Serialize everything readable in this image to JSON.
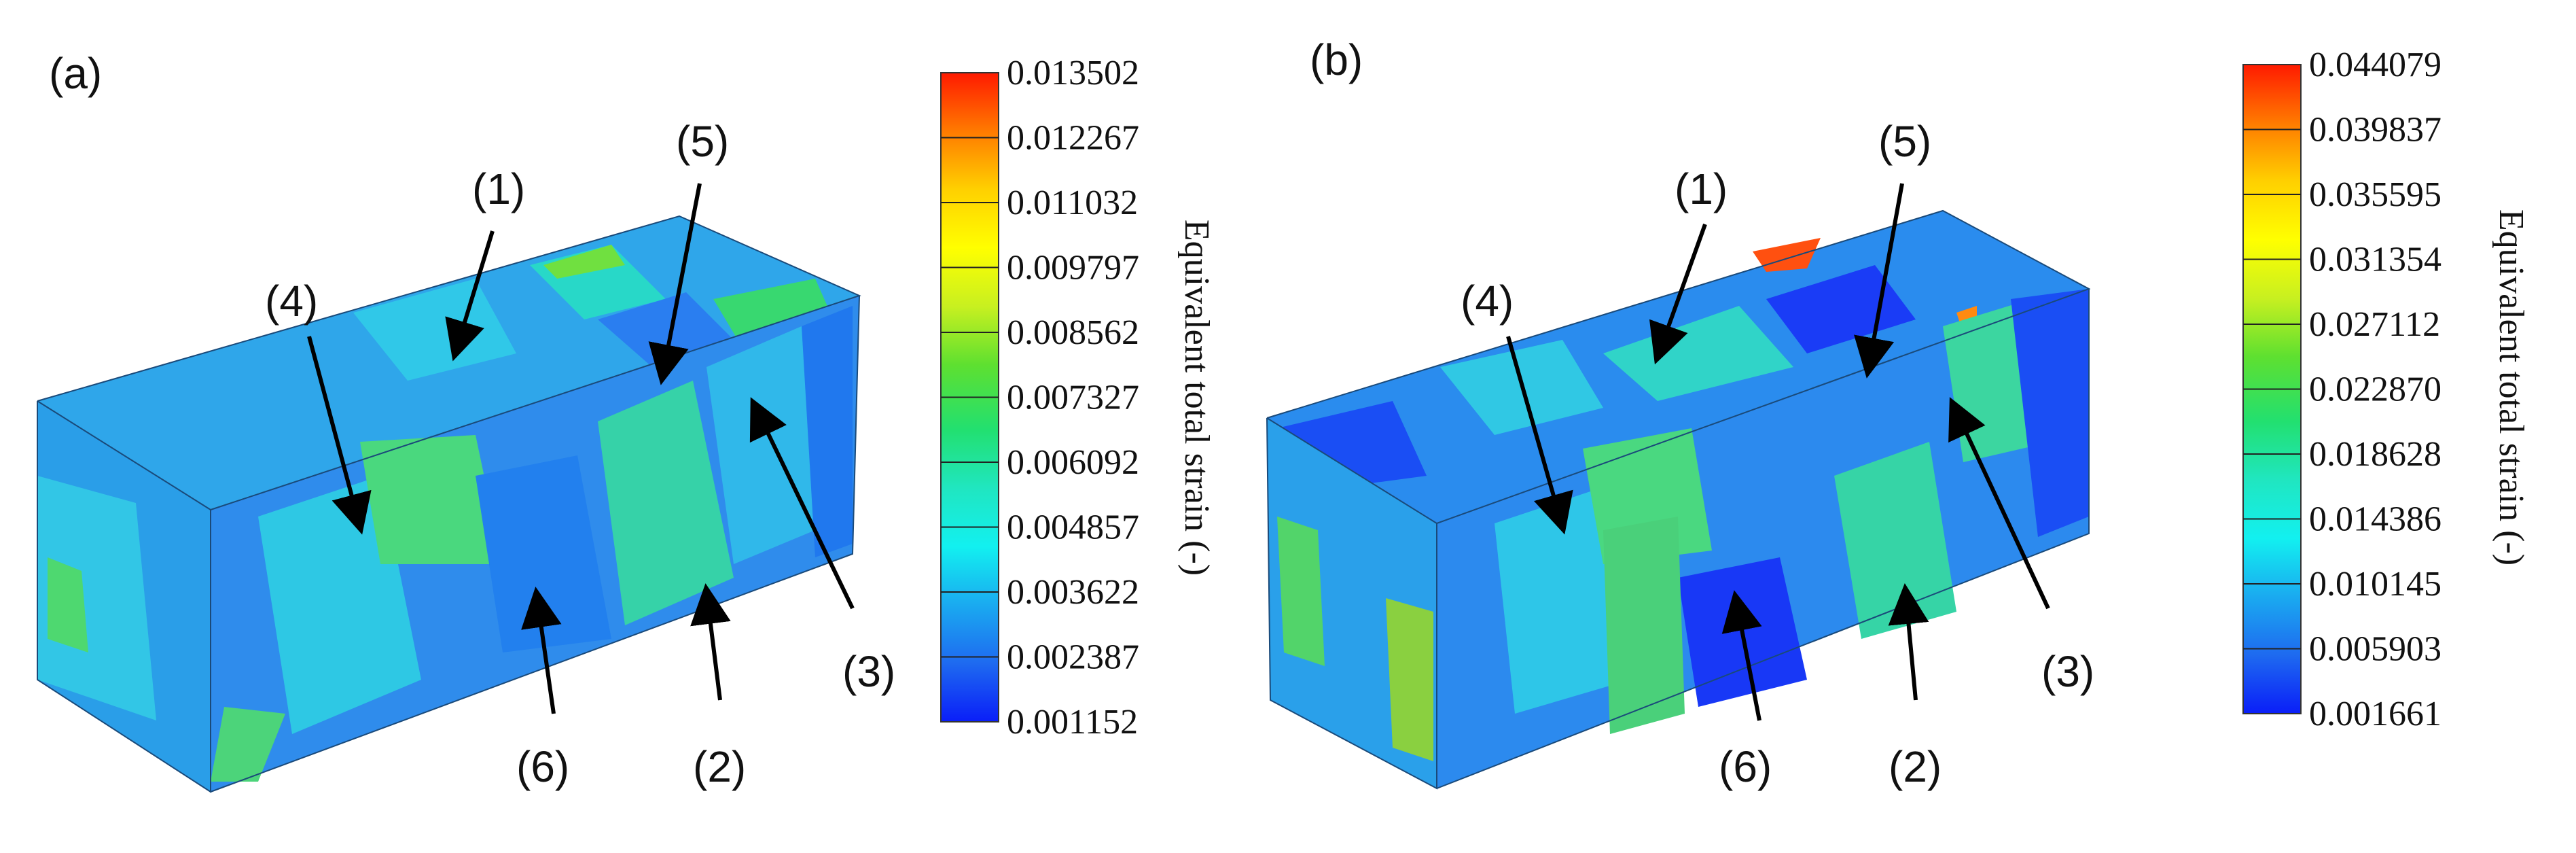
{
  "figure": {
    "panels": [
      {
        "label": "(a)",
        "callouts": [
          "(1)",
          "(2)",
          "(3)",
          "(4)",
          "(5)",
          "(6)"
        ],
        "colorbar": {
          "title": "Equivalent total strain (-)",
          "ticks": [
            "0.013502",
            "0.012267",
            "0.011032",
            "0.009797",
            "0.008562",
            "0.007327",
            "0.006092",
            "0.004857",
            "0.003622",
            "0.002387",
            "0.001152"
          ]
        }
      },
      {
        "label": "(b)",
        "callouts": [
          "(1)",
          "(2)",
          "(3)",
          "(4)",
          "(5)",
          "(6)"
        ],
        "colorbar": {
          "title": "Equivalent total strain (-)",
          "ticks": [
            "0.044079",
            "0.039837",
            "0.035595",
            "0.031354",
            "0.027112",
            "0.022870",
            "0.018628",
            "0.014386",
            "0.010145",
            "0.005903",
            "0.001661"
          ]
        }
      }
    ],
    "colormap": [
      "#ff1a00",
      "#ff7a00",
      "#ffd000",
      "#ffff00",
      "#c8f020",
      "#5ee030",
      "#22e070",
      "#20e6c0",
      "#12f0f0",
      "#1aaaf0",
      "#1e6af0",
      "#0a1ef8"
    ]
  }
}
